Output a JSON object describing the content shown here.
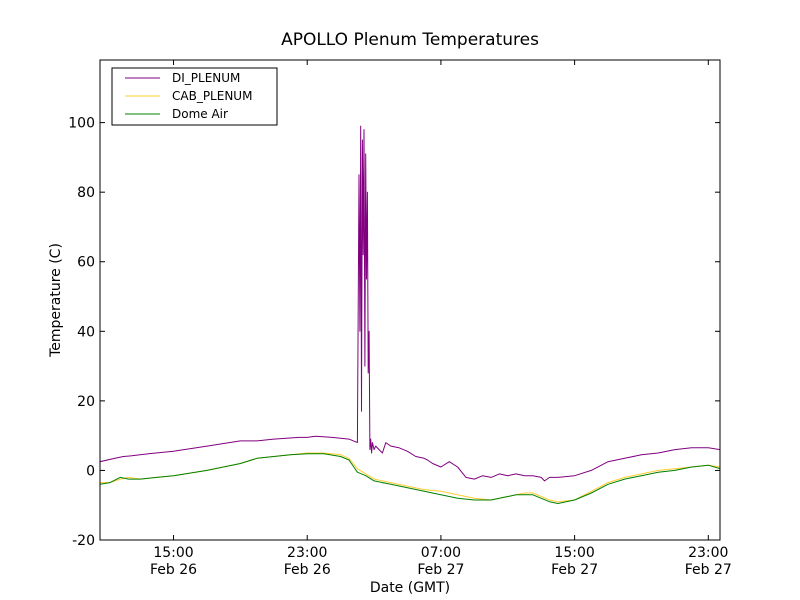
{
  "chart_data": {
    "type": "line",
    "title": "APOLLO Plenum Temperatures",
    "xlabel": "Date (GMT)",
    "ylabel": "Temperature (C)",
    "x_unit": "hours since Feb 26 00:00 GMT",
    "xlim": [
      10.6,
      47.7
    ],
    "ylim": [
      -20,
      118
    ],
    "grid": false,
    "legend_position": "top-left",
    "x_ticks": [
      {
        "value": 15,
        "time": "15:00",
        "date": "Feb 26"
      },
      {
        "value": 23,
        "time": "23:00",
        "date": "Feb 26"
      },
      {
        "value": 31,
        "time": "07:00",
        "date": "Feb 27"
      },
      {
        "value": 39,
        "time": "15:00",
        "date": "Feb 27"
      },
      {
        "value": 47,
        "time": "23:00",
        "date": "Feb 27"
      }
    ],
    "y_ticks": [
      {
        "value": -20,
        "label": "-20"
      },
      {
        "value": 0,
        "label": "0"
      },
      {
        "value": 20,
        "label": "20"
      },
      {
        "value": 40,
        "label": "40"
      },
      {
        "value": 60,
        "label": "60"
      },
      {
        "value": 80,
        "label": "80"
      },
      {
        "value": 100,
        "label": "100"
      }
    ],
    "series": [
      {
        "name": "DI_PLENUM",
        "color": "#800080",
        "x": [
          10.6,
          11.5,
          12.0,
          12.5,
          13.5,
          15.0,
          17.0,
          19.0,
          20.0,
          21.0,
          22.5,
          23.0,
          23.5,
          24.5,
          25.5,
          26.0,
          26.1,
          26.15,
          26.2,
          26.25,
          26.3,
          26.35,
          26.4,
          26.45,
          26.5,
          26.55,
          26.6,
          26.65,
          26.7,
          26.75,
          26.8,
          26.85,
          26.9,
          27.0,
          27.1,
          27.3,
          27.5,
          27.7,
          28.0,
          28.5,
          29.0,
          29.5,
          30.0,
          30.2,
          30.5,
          31.0,
          31.5,
          32.0,
          32.5,
          33.0,
          33.5,
          34.0,
          34.5,
          35.0,
          35.5,
          36.0,
          36.5,
          37.0,
          37.2,
          37.5,
          38.0,
          39.0,
          40.0,
          41.0,
          42.0,
          43.0,
          44.0,
          45.0,
          46.0,
          47.0,
          47.7
        ],
        "y": [
          2.5,
          3.5,
          4.0,
          4.2,
          4.8,
          5.5,
          7.0,
          8.5,
          8.5,
          9.0,
          9.5,
          9.5,
          9.8,
          9.5,
          9.0,
          8.0,
          85.0,
          40.0,
          99.0,
          17.0,
          95.0,
          62.0,
          98.0,
          30.0,
          91.0,
          55.0,
          80.0,
          28.0,
          40.0,
          6.0,
          9.0,
          5.0,
          8.0,
          6.0,
          7.0,
          6.0,
          5.0,
          8.0,
          7.0,
          6.5,
          5.5,
          4.0,
          3.5,
          3.0,
          2.0,
          1.0,
          2.5,
          1.0,
          -2.0,
          -2.5,
          -1.5,
          -2.0,
          -1.0,
          -1.5,
          -1.0,
          -1.5,
          -1.5,
          -2.0,
          -3.0,
          -2.0,
          -2.0,
          -1.5,
          0.0,
          2.5,
          3.5,
          4.5,
          5.0,
          6.0,
          6.5,
          6.5,
          6.0
        ]
      },
      {
        "name": "CAB_PLENUM",
        "color": "#FFCC33",
        "x": [
          10.6,
          11.2,
          11.8,
          12.3,
          13.0,
          14.0,
          15.0,
          17.0,
          19.0,
          20.0,
          21.0,
          22.0,
          23.0,
          24.0,
          25.0,
          25.5,
          26.0,
          26.5,
          27.0,
          28.0,
          29.0,
          30.0,
          31.0,
          32.0,
          33.0,
          34.0,
          34.5,
          35.0,
          35.5,
          36.0,
          36.5,
          37.0,
          37.5,
          38.0,
          39.0,
          40.0,
          41.0,
          42.0,
          43.0,
          44.0,
          45.0,
          46.0,
          47.0,
          47.7
        ],
        "y": [
          -3.5,
          -3.5,
          -2.5,
          -2.0,
          -2.5,
          -2.0,
          -1.5,
          0.0,
          2.0,
          3.5,
          4.0,
          4.5,
          5.0,
          5.0,
          4.5,
          3.5,
          0.5,
          -1.0,
          -2.5,
          -3.5,
          -4.5,
          -5.5,
          -6.0,
          -7.0,
          -8.0,
          -8.5,
          -8.0,
          -7.5,
          -7.0,
          -6.5,
          -6.5,
          -7.5,
          -8.5,
          -9.0,
          -8.5,
          -6.0,
          -3.5,
          -2.0,
          -1.0,
          0.0,
          0.5,
          1.0,
          1.5,
          1.0
        ]
      },
      {
        "name": "Dome Air",
        "color": "#008000",
        "x": [
          10.6,
          11.2,
          11.8,
          12.3,
          13.0,
          14.0,
          15.0,
          17.0,
          19.0,
          20.0,
          21.0,
          22.0,
          23.0,
          24.0,
          25.0,
          25.5,
          26.0,
          26.5,
          27.0,
          28.0,
          29.0,
          30.0,
          31.0,
          32.0,
          33.0,
          34.0,
          34.5,
          35.0,
          35.5,
          36.0,
          36.5,
          37.0,
          37.5,
          38.0,
          39.0,
          40.0,
          41.0,
          42.0,
          43.0,
          44.0,
          45.0,
          46.0,
          47.0,
          47.7
        ],
        "y": [
          -4.0,
          -3.5,
          -2.0,
          -2.5,
          -2.5,
          -2.0,
          -1.5,
          0.0,
          2.0,
          3.5,
          4.0,
          4.5,
          4.8,
          4.8,
          4.0,
          3.0,
          -0.5,
          -1.5,
          -3.0,
          -4.0,
          -5.0,
          -6.0,
          -7.0,
          -8.0,
          -8.5,
          -8.5,
          -8.0,
          -7.5,
          -7.0,
          -7.0,
          -7.0,
          -8.0,
          -9.0,
          -9.5,
          -8.5,
          -6.5,
          -4.0,
          -2.5,
          -1.5,
          -0.5,
          0.0,
          1.0,
          1.5,
          0.5
        ]
      }
    ]
  }
}
